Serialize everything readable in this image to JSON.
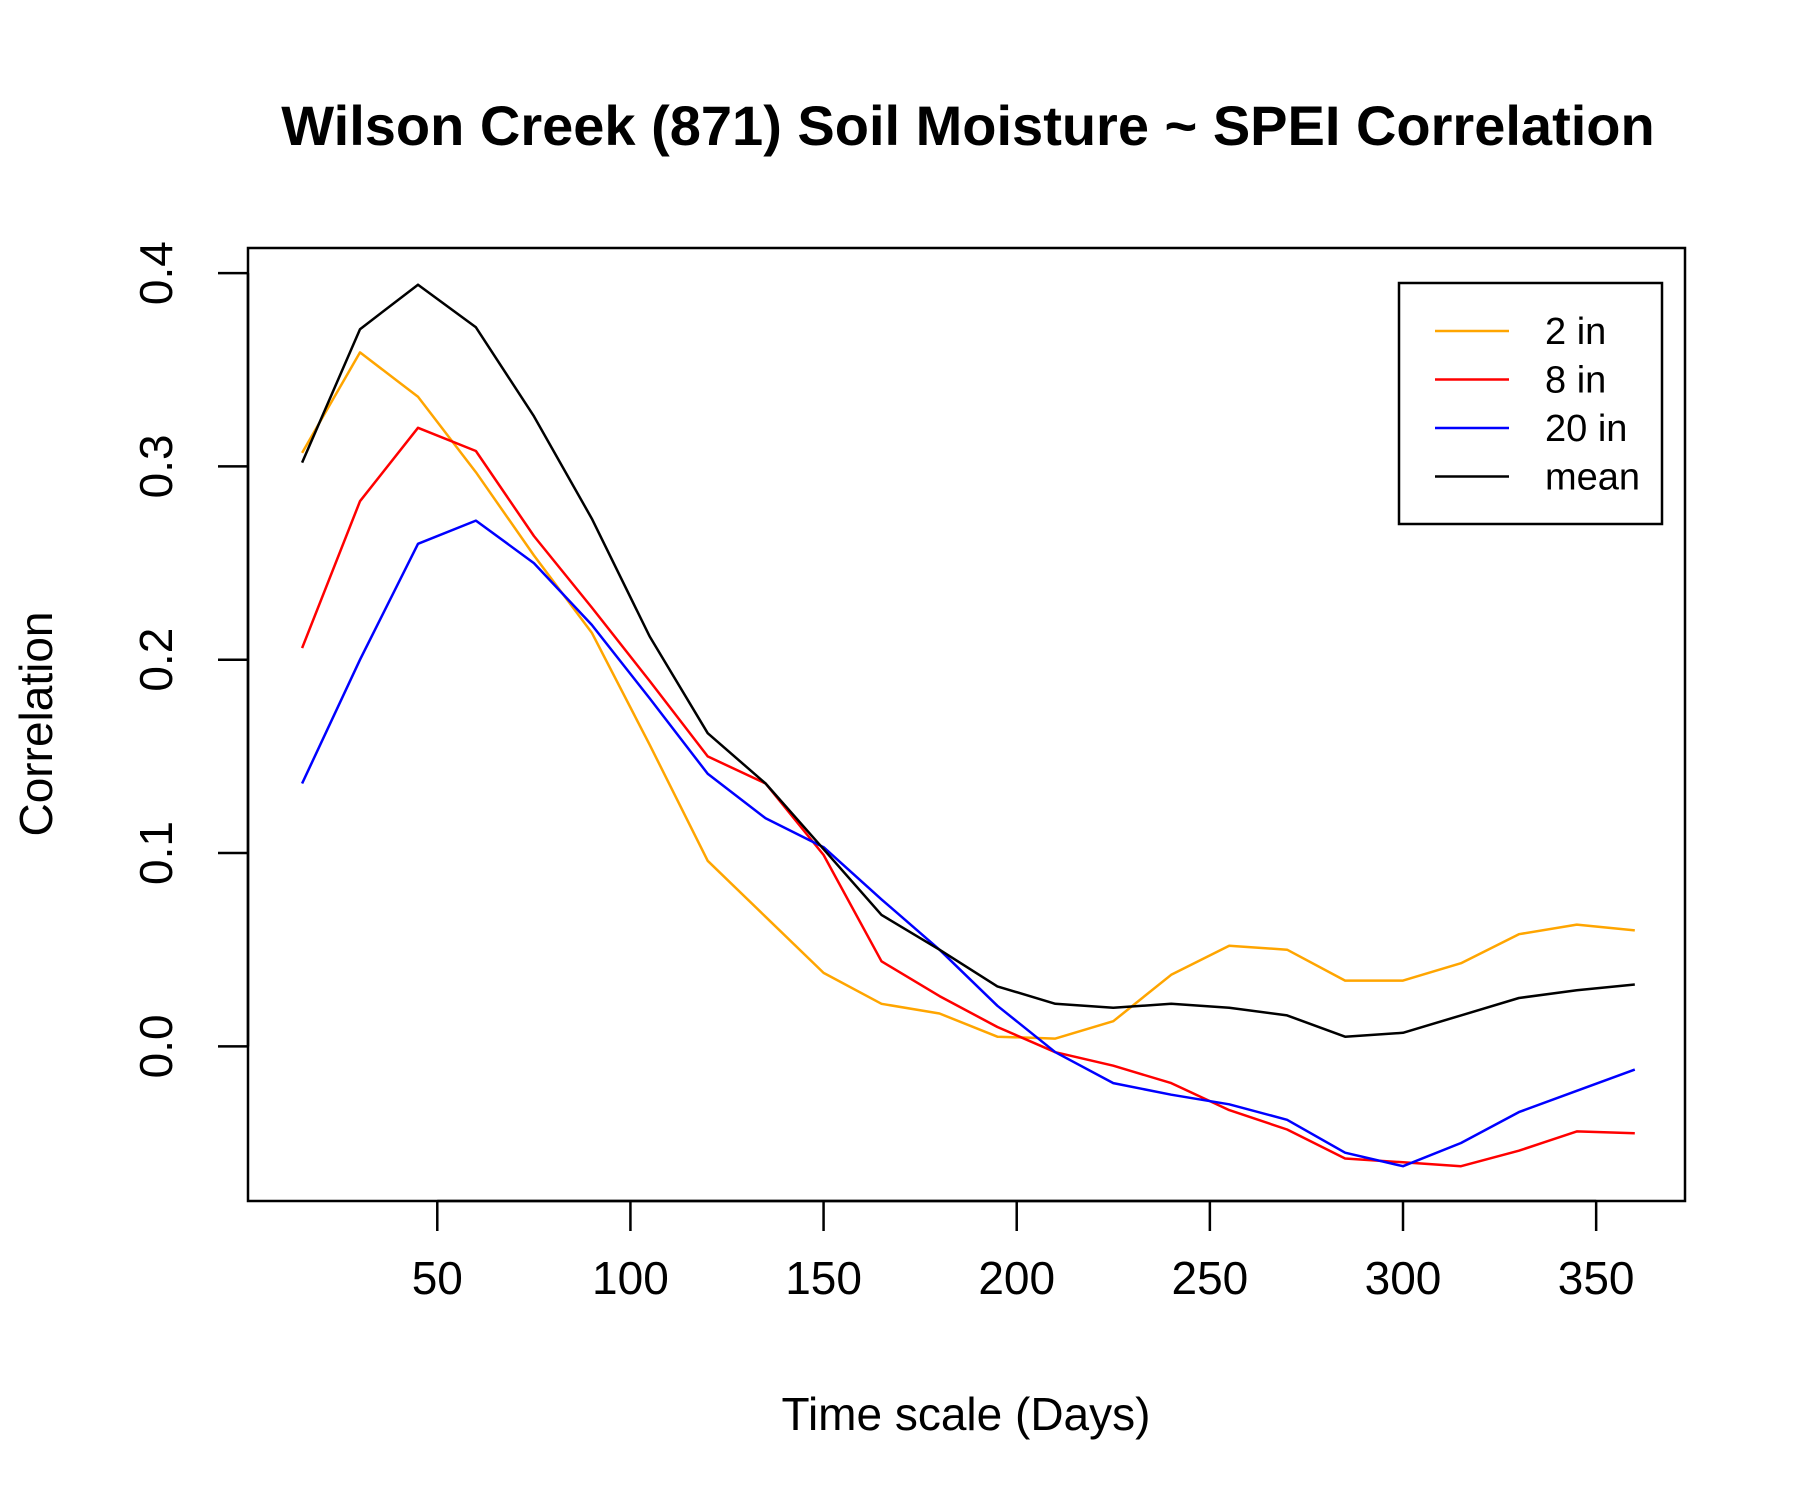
{
  "chart_data": {
    "type": "line",
    "title": "Wilson Creek (871) Soil Moisture ~ SPEI Correlation",
    "xlabel": "Time scale (Days)",
    "ylabel": "Correlation",
    "xlim": [
      1,
      373
    ],
    "ylim": [
      -0.08,
      0.413
    ],
    "x_ticks": [
      50,
      100,
      150,
      200,
      250,
      300,
      350
    ],
    "x_tick_labels": [
      "50",
      "100",
      "150",
      "200",
      "250",
      "300",
      "350"
    ],
    "y_ticks": [
      0.0,
      0.1,
      0.2,
      0.3,
      0.4
    ],
    "y_tick_labels": [
      "0.0",
      "0.1",
      "0.2",
      "0.3",
      "0.4"
    ],
    "legend_position": "top-right",
    "grid": false,
    "x": [
      15,
      30,
      45,
      60,
      75,
      90,
      105,
      120,
      135,
      150,
      165,
      180,
      195,
      210,
      225,
      240,
      255,
      270,
      285,
      300,
      315,
      330,
      345,
      360
    ],
    "series": [
      {
        "name": "2 in",
        "color": "#FFA500",
        "values": [
          0.307,
          0.359,
          0.336,
          0.297,
          0.254,
          0.214,
          0.156,
          0.096,
          0.067,
          0.038,
          0.022,
          0.017,
          0.005,
          0.004,
          0.013,
          0.037,
          0.052,
          0.05,
          0.034,
          0.034,
          0.043,
          0.058,
          0.063,
          0.06
        ]
      },
      {
        "name": "8 in",
        "color": "#FF0000",
        "values": [
          0.206,
          0.282,
          0.32,
          0.308,
          0.264,
          0.227,
          0.189,
          0.15,
          0.136,
          0.099,
          0.044,
          0.026,
          0.01,
          -0.003,
          -0.01,
          -0.019,
          -0.033,
          -0.043,
          -0.058,
          -0.06,
          -0.062,
          -0.054,
          -0.044,
          -0.045
        ]
      },
      {
        "name": "20 in",
        "color": "#0000FF",
        "values": [
          0.136,
          0.2,
          0.26,
          0.272,
          0.25,
          0.218,
          0.18,
          0.141,
          0.118,
          0.103,
          0.076,
          0.05,
          0.021,
          -0.003,
          -0.019,
          -0.025,
          -0.03,
          -0.038,
          -0.055,
          -0.062,
          -0.05,
          -0.034,
          -0.023,
          -0.012
        ]
      },
      {
        "name": "mean",
        "color": "#000000",
        "values": [
          0.302,
          0.371,
          0.394,
          0.372,
          0.326,
          0.273,
          0.212,
          0.162,
          0.136,
          0.102,
          0.068,
          0.05,
          0.031,
          0.022,
          0.02,
          0.022,
          0.02,
          0.016,
          0.005,
          0.007,
          0.016,
          0.025,
          0.029,
          0.032
        ]
      }
    ]
  }
}
